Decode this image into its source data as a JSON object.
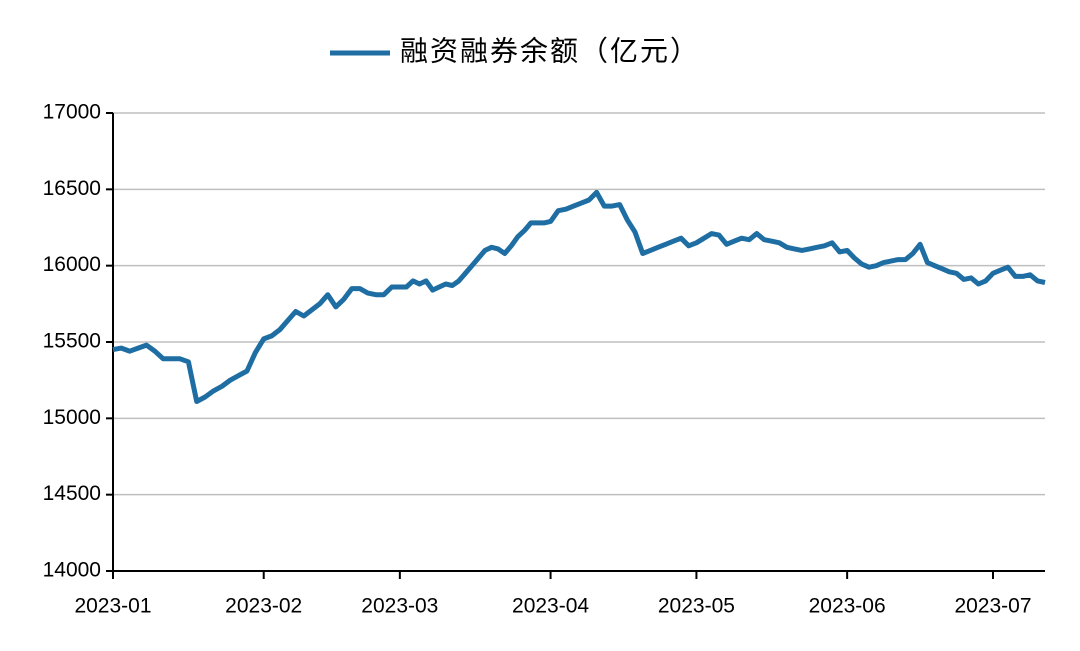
{
  "chart_data": {
    "type": "line",
    "x": [
      "2023-01",
      "2023-01",
      "2023-01",
      "2023-01",
      "2023-01",
      "2023-01",
      "2023-01",
      "2023-01",
      "2023-01",
      "2023-01",
      "2023-01",
      "2023-01",
      "2023-01",
      "2023-01",
      "2023-01",
      "2023-01",
      "2023-01",
      "2023-01",
      "2023-02",
      "2023-02",
      "2023-02",
      "2023-02",
      "2023-02",
      "2023-02",
      "2023-02",
      "2023-02",
      "2023-02",
      "2023-02",
      "2023-02",
      "2023-02",
      "2023-02",
      "2023-02",
      "2023-02",
      "2023-02",
      "2023-02",
      "2023-03",
      "2023-03",
      "2023-03",
      "2023-03",
      "2023-03",
      "2023-03",
      "2023-03",
      "2023-03",
      "2023-03",
      "2023-03",
      "2023-03",
      "2023-03",
      "2023-03",
      "2023-03",
      "2023-03",
      "2023-03",
      "2023-03",
      "2023-03",
      "2023-03",
      "2023-03",
      "2023-03",
      "2023-03",
      "2023-03",
      "2023-04",
      "2023-04",
      "2023-04",
      "2023-04",
      "2023-04",
      "2023-04",
      "2023-04",
      "2023-04",
      "2023-04",
      "2023-04",
      "2023-04",
      "2023-04",
      "2023-04",
      "2023-04",
      "2023-04",
      "2023-04",
      "2023-04",
      "2023-04",
      "2023-04",
      "2023-05",
      "2023-05",
      "2023-05",
      "2023-05",
      "2023-05",
      "2023-05",
      "2023-05",
      "2023-05",
      "2023-05",
      "2023-05",
      "2023-05",
      "2023-05",
      "2023-05",
      "2023-05",
      "2023-05",
      "2023-05",
      "2023-05",
      "2023-05",
      "2023-05",
      "2023-05",
      "2023-06",
      "2023-06",
      "2023-06",
      "2023-06",
      "2023-06",
      "2023-06",
      "2023-06",
      "2023-06",
      "2023-06",
      "2023-06",
      "2023-06",
      "2023-06",
      "2023-06",
      "2023-06",
      "2023-06",
      "2023-06",
      "2023-06",
      "2023-06",
      "2023-06",
      "2023-06",
      "2023-07",
      "2023-07",
      "2023-07",
      "2023-07",
      "2023-07",
      "2023-07",
      "2023-07",
      "2023-07"
    ],
    "series": [
      {
        "name": "融资融券余额（亿元）",
        "color": "#1f6ea3",
        "values": [
          15450,
          15460,
          15440,
          15460,
          15480,
          15440,
          15390,
          15390,
          15390,
          15370,
          15110,
          15140,
          15180,
          15210,
          15250,
          15280,
          15310,
          15430,
          15520,
          15540,
          15580,
          15640,
          15700,
          15670,
          15710,
          15750,
          15810,
          15730,
          15780,
          15850,
          15850,
          15820,
          15810,
          15810,
          15860,
          15860,
          15860,
          15900,
          15880,
          15900,
          15840,
          15860,
          15880,
          15870,
          15900,
          15950,
          16000,
          16050,
          16100,
          16120,
          16110,
          16080,
          16130,
          16190,
          16230,
          16280,
          16280,
          16280,
          16290,
          16360,
          16370,
          16390,
          16410,
          16430,
          16480,
          16390,
          16390,
          16400,
          16300,
          16220,
          16080,
          16100,
          16120,
          16140,
          16160,
          16180,
          16130,
          16150,
          16180,
          16210,
          16200,
          16140,
          16160,
          16180,
          16170,
          16210,
          16170,
          16160,
          16150,
          16120,
          16110,
          16100,
          16110,
          16120,
          16130,
          16150,
          16090,
          16100,
          16050,
          16010,
          15990,
          16000,
          16020,
          16030,
          16040,
          16040,
          16080,
          16140,
          16020,
          16000,
          15980,
          15960,
          15950,
          15910,
          15920,
          15880,
          15900,
          15950,
          15970,
          15990,
          15930,
          15930,
          15940,
          15900,
          15890
        ]
      }
    ],
    "xticks": [
      "2023-01",
      "2023-02",
      "2023-03",
      "2023-04",
      "2023-05",
      "2023-06",
      "2023-07"
    ],
    "ylim": [
      14000,
      17000
    ],
    "yticks": [
      14000,
      14500,
      15000,
      15500,
      16000,
      16500,
      17000
    ],
    "grid": true,
    "legend": "top"
  }
}
